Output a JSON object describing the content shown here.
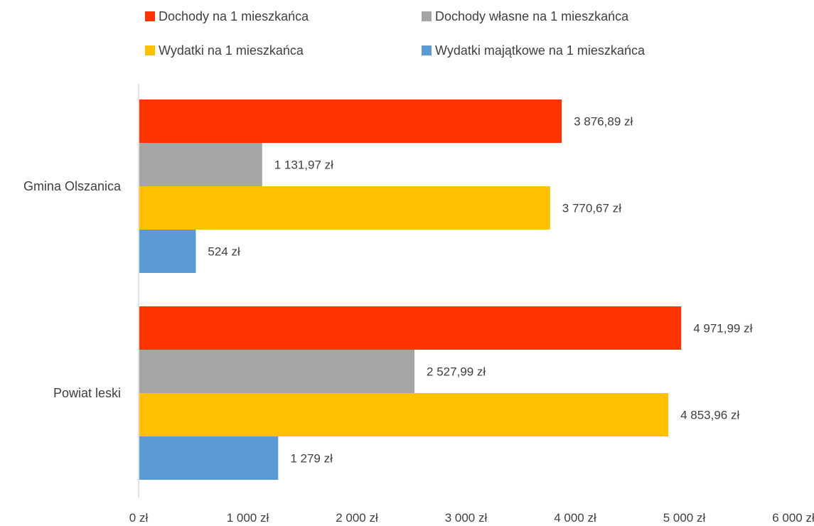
{
  "chart_data": {
    "type": "bar",
    "orientation": "horizontal",
    "title": "",
    "xlabel": "",
    "ylabel": "",
    "categories": [
      "Gmina Olszanica",
      "Powiat leski"
    ],
    "series": [
      {
        "name": "Dochody na 1 mieszkańca",
        "color": "#FF3300",
        "values": [
          3876.89,
          4971.99
        ],
        "labels": [
          "3 876,89 zł",
          "4 971,99 zł"
        ]
      },
      {
        "name": "Dochody własne na 1 mieszkańca",
        "color": "#A5A5A5",
        "values": [
          1131.97,
          2527.99
        ],
        "labels": [
          "1 131,97 zł",
          "2 527,99 zł"
        ]
      },
      {
        "name": "Wydatki na 1 mieszkańca",
        "color": "#FFC000",
        "values": [
          3770.67,
          4853.96
        ],
        "labels": [
          "3 770,67 zł",
          "4 853,96 zł"
        ]
      },
      {
        "name": "Wydatki majątkowe na 1 mieszkańca",
        "color": "#5B9BD5",
        "values": [
          524,
          1279
        ],
        "labels": [
          "524 zł",
          "1 279 zł"
        ]
      }
    ],
    "xlim": [
      0,
      6000
    ],
    "xticks": [
      0,
      1000,
      2000,
      3000,
      4000,
      5000,
      6000
    ],
    "xtick_labels": [
      "0 zł",
      "1 000 zł",
      "2 000 zł",
      "3 000 zł",
      "4 000 zł",
      "5 000 zł",
      "6 000 zł"
    ],
    "grid": false,
    "legend_position": "top"
  }
}
